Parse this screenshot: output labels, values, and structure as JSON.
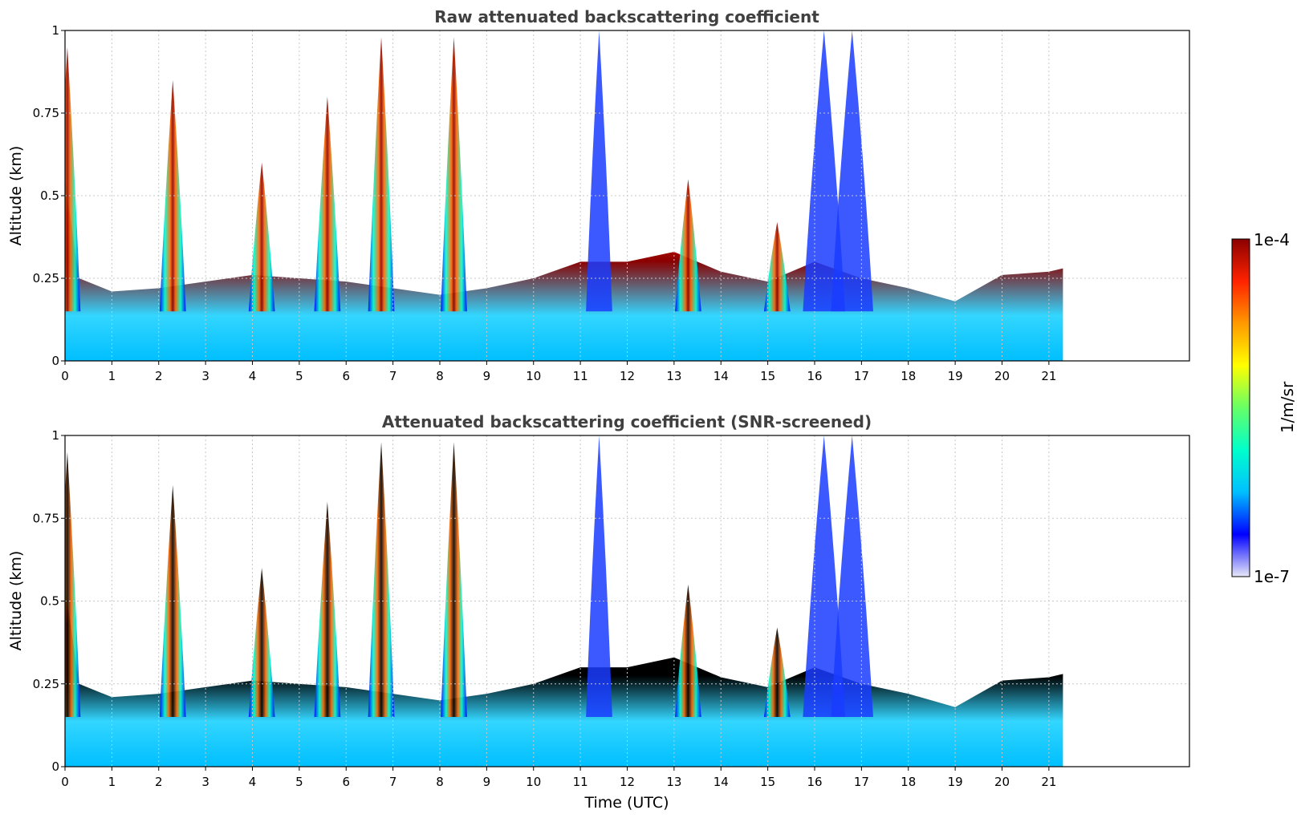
{
  "chart_data": [
    {
      "type": "heatmap",
      "title": "Raw attenuated backscattering coefficient",
      "xlabel": "",
      "ylabel": "Altitude (km)",
      "xlim": [
        0,
        24
      ],
      "ylim": [
        0,
        1
      ],
      "x_ticks": [
        "0",
        "1",
        "2",
        "3",
        "4",
        "5",
        "6",
        "7",
        "8",
        "9",
        "10",
        "11",
        "12",
        "13",
        "14",
        "15",
        "16",
        "17",
        "18",
        "19",
        "20",
        "21"
      ],
      "y_ticks": [
        "0",
        "0.25",
        "0.5",
        "0.75",
        "1"
      ],
      "grid": true,
      "data_end_hour": 21.3,
      "colormap": "jet-like (white below 1e-7, dark red at 1e-4)",
      "features": {
        "boundary_layer_top_km": [
          [
            0,
            0.55
          ],
          [
            0.3,
            0.25
          ],
          [
            1,
            0.21
          ],
          [
            2,
            0.22
          ],
          [
            3,
            0.24
          ],
          [
            4,
            0.26
          ],
          [
            5,
            0.25
          ],
          [
            6,
            0.24
          ],
          [
            7,
            0.22
          ],
          [
            8,
            0.2
          ],
          [
            9,
            0.22
          ],
          [
            10,
            0.25
          ],
          [
            11,
            0.3
          ],
          [
            12,
            0.3
          ],
          [
            13,
            0.33
          ],
          [
            14,
            0.27
          ],
          [
            15,
            0.24
          ],
          [
            16,
            0.3
          ],
          [
            17,
            0.25
          ],
          [
            18,
            0.22
          ],
          [
            19,
            0.18
          ],
          [
            20,
            0.26
          ],
          [
            21,
            0.27
          ],
          [
            21.3,
            0.28
          ]
        ],
        "cloud_plumes": [
          {
            "x": 0.05,
            "top_km": 0.95
          },
          {
            "x": 2.3,
            "top_km": 0.85
          },
          {
            "x": 4.2,
            "top_km": 0.6
          },
          {
            "x": 5.6,
            "top_km": 0.8
          },
          {
            "x": 6.75,
            "top_km": 0.98
          },
          {
            "x": 8.3,
            "top_km": 0.98
          },
          {
            "x": 11.4,
            "top_km": 1.0
          },
          {
            "x": 13.3,
            "top_km": 0.55
          },
          {
            "x": 15.2,
            "top_km": 0.42
          },
          {
            "x": 16.2,
            "top_km": 1.0
          },
          {
            "x": 16.8,
            "top_km": 1.0
          }
        ]
      }
    },
    {
      "type": "heatmap",
      "title": "Attenuated backscattering coefficient (SNR-screened)",
      "xlabel": "Time (UTC)",
      "ylabel": "Altitude (km)",
      "xlim": [
        0,
        24
      ],
      "ylim": [
        0,
        1
      ],
      "x_ticks": [
        "0",
        "1",
        "2",
        "3",
        "4",
        "5",
        "6",
        "7",
        "8",
        "9",
        "10",
        "11",
        "12",
        "13",
        "14",
        "15",
        "16",
        "17",
        "18",
        "19",
        "20",
        "21"
      ],
      "y_ticks": [
        "0",
        "0.25",
        "0.5",
        "0.75",
        "1"
      ],
      "grid": true,
      "data_end_hour": 21.3,
      "colormap": "jet-like with black for saturated values"
    }
  ],
  "colorbar": {
    "min_label": "1e-7",
    "max_label": "1e-4",
    "label": "1/m/sr",
    "stops": [
      "#e8e8f8",
      "#0000ff",
      "#00bfff",
      "#00ffcc",
      "#66ff66",
      "#ffff00",
      "#ff9900",
      "#ff2200",
      "#8b0000"
    ]
  },
  "colors": {
    "grid": "#c8c8c8",
    "title": "#404040",
    "saturated": "#000000"
  }
}
